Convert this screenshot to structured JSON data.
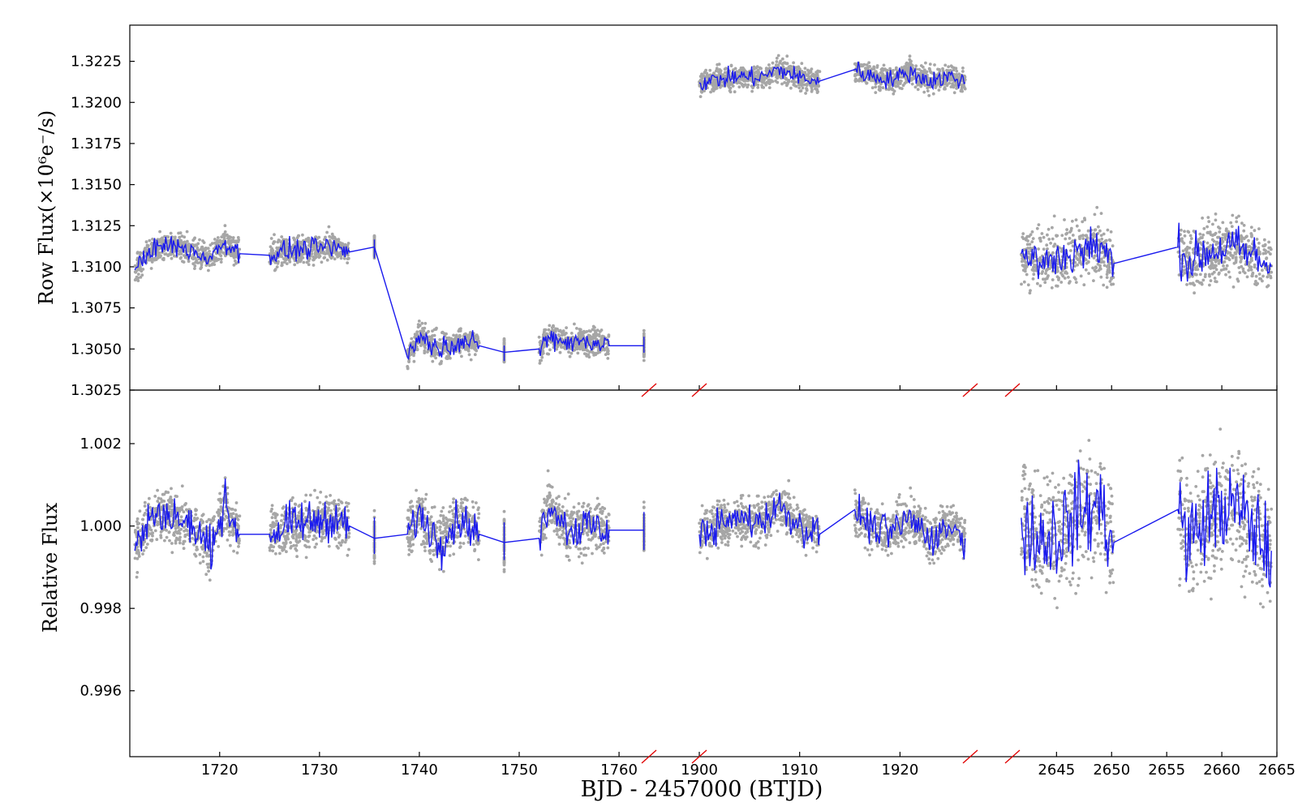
{
  "chart_data": {
    "type": "scatter",
    "xlabel": "BJD - 2457000 (BTJD)",
    "colors": {
      "points": "#a6a6a6",
      "line": "#1a1aee",
      "break_marks": "#e00000"
    },
    "segments": [
      {
        "xlim": [
          1711,
          1763
        ],
        "xticks": [
          1720,
          1730,
          1740,
          1750,
          1760
        ]
      },
      {
        "xlim": [
          1900,
          1927
        ],
        "xticks": [
          1900,
          1910,
          1920
        ]
      },
      {
        "xlim": [
          2641,
          2665
        ],
        "xticks": [
          2645,
          2650,
          2655,
          2660,
          2665
        ]
      }
    ],
    "panels": [
      {
        "id": "raw",
        "ylabel": "Row Flux(×10⁶e⁻/s)",
        "ylim": [
          1.3025,
          1.3247
        ],
        "yticks": [
          "1.3025",
          "1.3050",
          "1.3075",
          "1.3100",
          "1.3125",
          "1.3150",
          "1.3175",
          "1.3200",
          "1.3225"
        ],
        "series": [
          {
            "x": [
              1711.5,
              1713,
              1715,
              1717,
              1719,
              1720.5,
              1722,
              1725,
              1727,
              1729,
              1731,
              1733,
              1735.5,
              1738.8,
              1740,
              1742,
              1744,
              1746,
              1748.5,
              1752,
              1753,
              1755,
              1757,
              1759,
              1762.5
            ],
            "y": [
              1.3098,
              1.311,
              1.3113,
              1.311,
              1.3105,
              1.3115,
              1.3108,
              1.3107,
              1.311,
              1.3111,
              1.3112,
              1.3109,
              1.3112,
              1.3045,
              1.3058,
              1.305,
              1.3055,
              1.3052,
              1.3048,
              1.305,
              1.3058,
              1.3054,
              1.3055,
              1.3052,
              1.3052
            ],
            "scatter": 0.0009
          },
          {
            "x": [
              1900,
              1902,
              1904,
              1906,
              1908,
              1910,
              1912,
              1915.5,
              1917,
              1919,
              1921,
              1923,
              1925,
              1926.5
            ],
            "y": [
              1.3212,
              1.3214,
              1.3216,
              1.3215,
              1.322,
              1.3215,
              1.3213,
              1.322,
              1.3216,
              1.3214,
              1.3218,
              1.3213,
              1.3216,
              1.3212
            ],
            "scatter": 0.0008
          },
          {
            "x": [
              2641.8,
              2643,
              2645,
              2647,
              2649,
              2650.2,
              2656,
              2657,
              2659,
              2661,
              2663,
              2664.5
            ],
            "y": [
              1.3108,
              1.3103,
              1.3104,
              1.311,
              1.3112,
              1.3102,
              1.3112,
              1.3103,
              1.311,
              1.3112,
              1.3106,
              1.31
            ],
            "scatter": 0.002
          }
        ]
      },
      {
        "id": "relative",
        "ylabel": "Relative Flux",
        "ylim": [
          0.9944,
          1.0033
        ],
        "yticks": [
          "0.996",
          "0.998",
          "1.000",
          "1.002"
        ],
        "series": [
          {
            "x": [
              1711.5,
              1713,
              1715,
              1717,
              1719,
              1720.5,
              1722,
              1725,
              1727,
              1729,
              1731,
              1733,
              1735.5,
              1738.8,
              1740,
              1742,
              1744,
              1746,
              1748.5,
              1752,
              1753,
              1755,
              1757,
              1759,
              1762.5
            ],
            "y": [
              0.9994,
              1.0002,
              1.0003,
              1.0,
              0.9995,
              1.0005,
              0.9998,
              0.9998,
              1.0,
              1.0001,
              1.0002,
              1.0,
              0.9997,
              0.9998,
              1.0003,
              0.9996,
              1.0002,
              0.9998,
              0.9996,
              0.9997,
              1.0006,
              0.9999,
              1.0,
              0.9999,
              0.9999
            ],
            "scatter": 0.0007
          },
          {
            "x": [
              1900,
              1902,
              1904,
              1906,
              1908,
              1910,
              1912,
              1915.5,
              1917,
              1919,
              1921,
              1923,
              1925,
              1926.5
            ],
            "y": [
              0.9998,
              1.0,
              1.0002,
              1.0001,
              1.0005,
              1.0,
              0.9998,
              1.0004,
              1.0,
              0.9998,
              1.0002,
              0.9997,
              1.0,
              0.9997
            ],
            "scatter": 0.0006
          },
          {
            "x": [
              2641.8,
              2643,
              2645,
              2647,
              2649,
              2650.2,
              2656,
              2657,
              2659,
              2661,
              2663,
              2664.5
            ],
            "y": [
              1.0002,
              0.9997,
              0.9998,
              1.0003,
              1.0005,
              0.9996,
              1.0004,
              0.9996,
              1.0003,
              1.0005,
              0.9999,
              0.9994
            ],
            "scatter": 0.0016
          }
        ]
      }
    ]
  }
}
